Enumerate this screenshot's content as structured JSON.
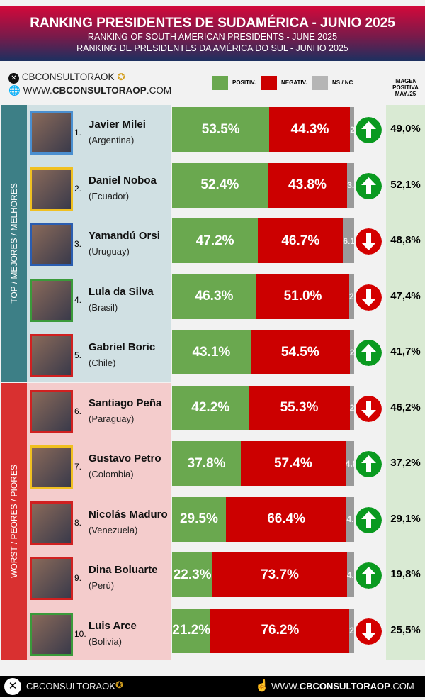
{
  "header": {
    "title": "RANKING PRESIDENTES DE SUDAMÉRICA - JUNIO 2025",
    "subtitle_en": "RANKING OF SOUTH AMERICAN PRESIDENTS -  JUNE 2025",
    "subtitle_pt": "RANKING DE PRESIDENTES DA AMÉRICA DO SUL - JUNHO 2025"
  },
  "brand": {
    "handle": "CBCONSULTORAOK",
    "site_pre": "WWW.",
    "site_bold": "CBCONSULTORAOP",
    "site_post": ".COM"
  },
  "legend": {
    "positive": "POSITIV.",
    "negative": "NEGATIV.",
    "nsnc": "NS / NC",
    "image_label": "IMAGEN POSITIVA MAY./25"
  },
  "colors": {
    "positive": "#6aa84f",
    "negative": "#cc0000",
    "nsnc": "#9a9a9a",
    "up": "#0a9a20",
    "down": "#d40000"
  },
  "groups": {
    "top": "TOP / MEJORES / MELHORES",
    "worst": "WORST / PEORES / PIORES"
  },
  "chart_data": {
    "type": "bar",
    "stacked": true,
    "orientation": "horizontal",
    "series_names": [
      "POSITIV.",
      "NEGATIV.",
      "NS / NC"
    ],
    "rows": [
      {
        "rank": "1.",
        "name": "Javier Milei",
        "country": "(Argentina)",
        "positive": 53.5,
        "negative": 44.3,
        "nsnc": 2.2,
        "trend": "up",
        "image_may25": "49,0%",
        "border": "#4a8fd0"
      },
      {
        "rank": "2.",
        "name": "Daniel Noboa",
        "country": "(Ecuador)",
        "positive": 52.4,
        "negative": 43.8,
        "nsnc": 3.8,
        "trend": "up",
        "image_may25": "52,1%",
        "border": "#f0c020"
      },
      {
        "rank": "3.",
        "name": "Yamandú Orsi",
        "country": "(Uruguay)",
        "positive": 47.2,
        "negative": 46.7,
        "nsnc": 6.1,
        "trend": "down",
        "image_may25": "48,8%",
        "border": "#2a5db0"
      },
      {
        "rank": "4.",
        "name": "Lula da Silva",
        "country": "(Brasil)",
        "positive": 46.3,
        "negative": 51.0,
        "nsnc": 2.7,
        "trend": "down",
        "image_may25": "47,4%",
        "border": "#3a9a3a"
      },
      {
        "rank": "5.",
        "name": "Gabriel Boric",
        "country": "(Chile)",
        "positive": 43.1,
        "negative": 54.5,
        "nsnc": 2.4,
        "trend": "up",
        "image_may25": "41,7%",
        "border": "#d02020"
      },
      {
        "rank": "6.",
        "name": "Santiago Peña",
        "country": "(Paraguay)",
        "positive": 42.2,
        "negative": 55.3,
        "nsnc": 2.5,
        "trend": "down",
        "image_may25": "46,2%",
        "border": "#d02020"
      },
      {
        "rank": "7.",
        "name": "Gustavo Petro",
        "country": "(Colombia)",
        "positive": 37.8,
        "negative": 57.4,
        "nsnc": 4.8,
        "trend": "up",
        "image_may25": "37,2%",
        "border": "#f0c020"
      },
      {
        "rank": "8.",
        "name": "Nicolás Maduro",
        "country": "(Venezuela)",
        "positive": 29.5,
        "negative": 66.4,
        "nsnc": 4.1,
        "trend": "up",
        "image_may25": "29,1%",
        "border": "#d02020"
      },
      {
        "rank": "9.",
        "name": "Dina Boluarte",
        "country": "(Perú)",
        "positive": 22.3,
        "negative": 73.7,
        "nsnc": 4.0,
        "trend": "up",
        "image_may25": "19,8%",
        "border": "#d02020"
      },
      {
        "rank": "10.",
        "name": "Luis Arce",
        "country": "(Bolivia)",
        "positive": 21.2,
        "negative": 76.2,
        "nsnc": 2.6,
        "trend": "down",
        "image_may25": "25,5%",
        "border": "#3a9a3a"
      }
    ]
  }
}
